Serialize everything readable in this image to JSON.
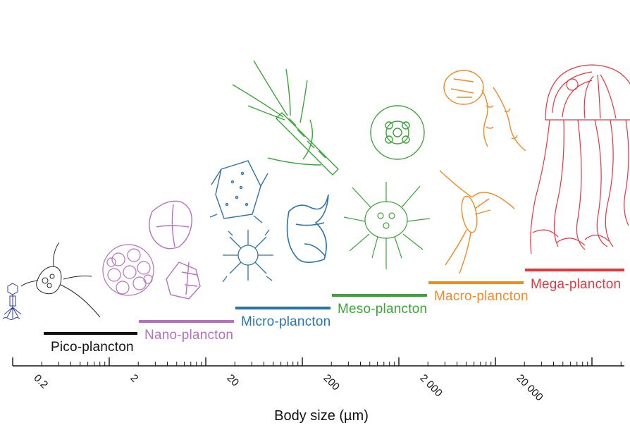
{
  "diagram": {
    "categories": [
      {
        "id": "pico",
        "label": "Pico-plancton",
        "color": "#111111",
        "organisms": [
          "virus-icon",
          "bacterium-icon"
        ]
      },
      {
        "id": "nano",
        "label": "Nano-plancton",
        "color": "#b76fc2",
        "organisms": [
          "coccolithophore-icon",
          "diatom-icon"
        ]
      },
      {
        "id": "micro",
        "label": "Micro-plancton",
        "color": "#2a73ad",
        "organisms": [
          "diatom-icon",
          "radiolarian-icon"
        ]
      },
      {
        "id": "meso",
        "label": "Meso-plancton",
        "color": "#3aa535",
        "organisms": [
          "chaetognath-icon",
          "larva-icon",
          "radiolarian-icon"
        ]
      },
      {
        "id": "macro",
        "label": "Macro-plancton",
        "color": "#f08a24",
        "organisms": [
          "salp-icon",
          "copepod-icon"
        ]
      },
      {
        "id": "mega",
        "label": "Mega-plancton",
        "color": "#e8353c",
        "organisms": [
          "jellyfish-icon"
        ]
      }
    ],
    "axis": {
      "title": "Body size (µm)",
      "scale": "log",
      "tick_labels": [
        "0.2",
        "2",
        "20",
        "200",
        "2 000",
        "20 000"
      ]
    }
  }
}
